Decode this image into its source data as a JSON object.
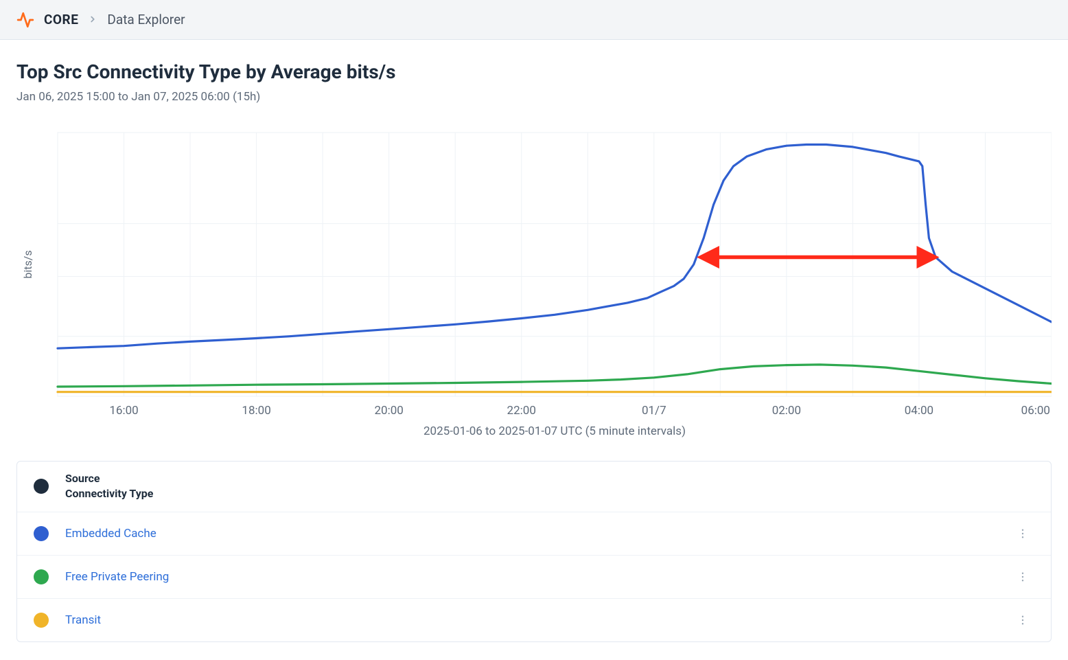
{
  "breadcrumb": {
    "root_label": "CORE",
    "crumb_label": "Data Explorer"
  },
  "page": {
    "title": "Top Src Connectivity Type by Average bits/s",
    "subtitle": "Jan 06, 2025 15:00 to Jan 07, 2025 06:00 (15h)"
  },
  "chart": {
    "type": "line",
    "y_axis_label": "bits/s",
    "x_axis_caption": "2025-01-06 to 2025-01-07 UTC (5 minute intervals)",
    "background_color": "#ffffff",
    "plot_border_color": "#e8ecef",
    "grid_color": "#eef2f6",
    "axis_text_color": "#5f6b7a",
    "line_width": 3.2,
    "x_tick_labels": [
      "16:00",
      "18:00",
      "20:00",
      "22:00",
      "01/7",
      "02:00",
      "04:00",
      "06:00"
    ],
    "x_range_hours": [
      15,
      30
    ],
    "y_range": [
      0,
      110
    ],
    "y_gridlines": [
      0,
      25,
      50,
      72,
      110
    ],
    "annotation_arrow": {
      "color": "#ff2a1a",
      "stroke_width": 5.5,
      "x1_hour": 24.9,
      "x2_hour": 28.05,
      "y": 58
    },
    "series": [
      {
        "name": "Embedded Cache",
        "color": "#2f5fd0",
        "points": [
          [
            15.0,
            20
          ],
          [
            15.5,
            20.5
          ],
          [
            16.0,
            21
          ],
          [
            16.5,
            22
          ],
          [
            17.0,
            22.8
          ],
          [
            17.5,
            23.5
          ],
          [
            18.0,
            24.2
          ],
          [
            18.5,
            25
          ],
          [
            19.0,
            26
          ],
          [
            19.5,
            27
          ],
          [
            20.0,
            28
          ],
          [
            20.5,
            29
          ],
          [
            21.0,
            30
          ],
          [
            21.5,
            31.2
          ],
          [
            22.0,
            32.5
          ],
          [
            22.5,
            34
          ],
          [
            23.0,
            36
          ],
          [
            23.3,
            37.5
          ],
          [
            23.6,
            39
          ],
          [
            23.9,
            41
          ],
          [
            24.1,
            43.5
          ],
          [
            24.3,
            46
          ],
          [
            24.45,
            49
          ],
          [
            24.6,
            55
          ],
          [
            24.75,
            66
          ],
          [
            24.9,
            80
          ],
          [
            25.05,
            90
          ],
          [
            25.2,
            96
          ],
          [
            25.4,
            100
          ],
          [
            25.7,
            103
          ],
          [
            26.0,
            104.5
          ],
          [
            26.3,
            105
          ],
          [
            26.6,
            105
          ],
          [
            27.0,
            104
          ],
          [
            27.3,
            102.5
          ],
          [
            27.5,
            101.5
          ],
          [
            27.7,
            100
          ],
          [
            27.85,
            99
          ],
          [
            28.0,
            98
          ],
          [
            28.05,
            96
          ],
          [
            28.1,
            80
          ],
          [
            28.15,
            66
          ],
          [
            28.25,
            58
          ],
          [
            28.5,
            52
          ],
          [
            29.0,
            45
          ],
          [
            29.5,
            38
          ],
          [
            30.0,
            31
          ]
        ]
      },
      {
        "name": "Free Private Peering",
        "color": "#2ea84f",
        "points": [
          [
            15.0,
            4
          ],
          [
            16.0,
            4.2
          ],
          [
            17.0,
            4.5
          ],
          [
            18.0,
            4.8
          ],
          [
            19.0,
            5
          ],
          [
            20.0,
            5.3
          ],
          [
            21.0,
            5.6
          ],
          [
            22.0,
            6
          ],
          [
            23.0,
            6.5
          ],
          [
            23.5,
            7
          ],
          [
            24.0,
            7.8
          ],
          [
            24.5,
            9.2
          ],
          [
            25.0,
            11.3
          ],
          [
            25.5,
            12.5
          ],
          [
            26.0,
            13
          ],
          [
            26.5,
            13.2
          ],
          [
            27.0,
            12.8
          ],
          [
            27.5,
            12
          ],
          [
            28.0,
            10.5
          ],
          [
            28.5,
            9
          ],
          [
            29.0,
            7.5
          ],
          [
            29.5,
            6.3
          ],
          [
            30.0,
            5.3
          ]
        ]
      },
      {
        "name": "Transit",
        "color": "#f0b429",
        "points": [
          [
            15.0,
            1.8
          ],
          [
            17.0,
            1.8
          ],
          [
            19.0,
            1.8
          ],
          [
            21.0,
            1.8
          ],
          [
            23.0,
            1.8
          ],
          [
            25.0,
            1.8
          ],
          [
            27.0,
            1.8
          ],
          [
            29.0,
            1.8
          ],
          [
            30.0,
            1.8
          ]
        ]
      }
    ]
  },
  "legend_table": {
    "header_line1": "Source",
    "header_line2": "Connectivity Type",
    "header_swatch_color": "#1f2d3d",
    "rows": [
      {
        "label": "Embedded Cache",
        "swatch_color": "#2f5fd0"
      },
      {
        "label": "Free Private Peering",
        "swatch_color": "#2ea84f"
      },
      {
        "label": "Transit",
        "swatch_color": "#f0b429"
      }
    ]
  }
}
